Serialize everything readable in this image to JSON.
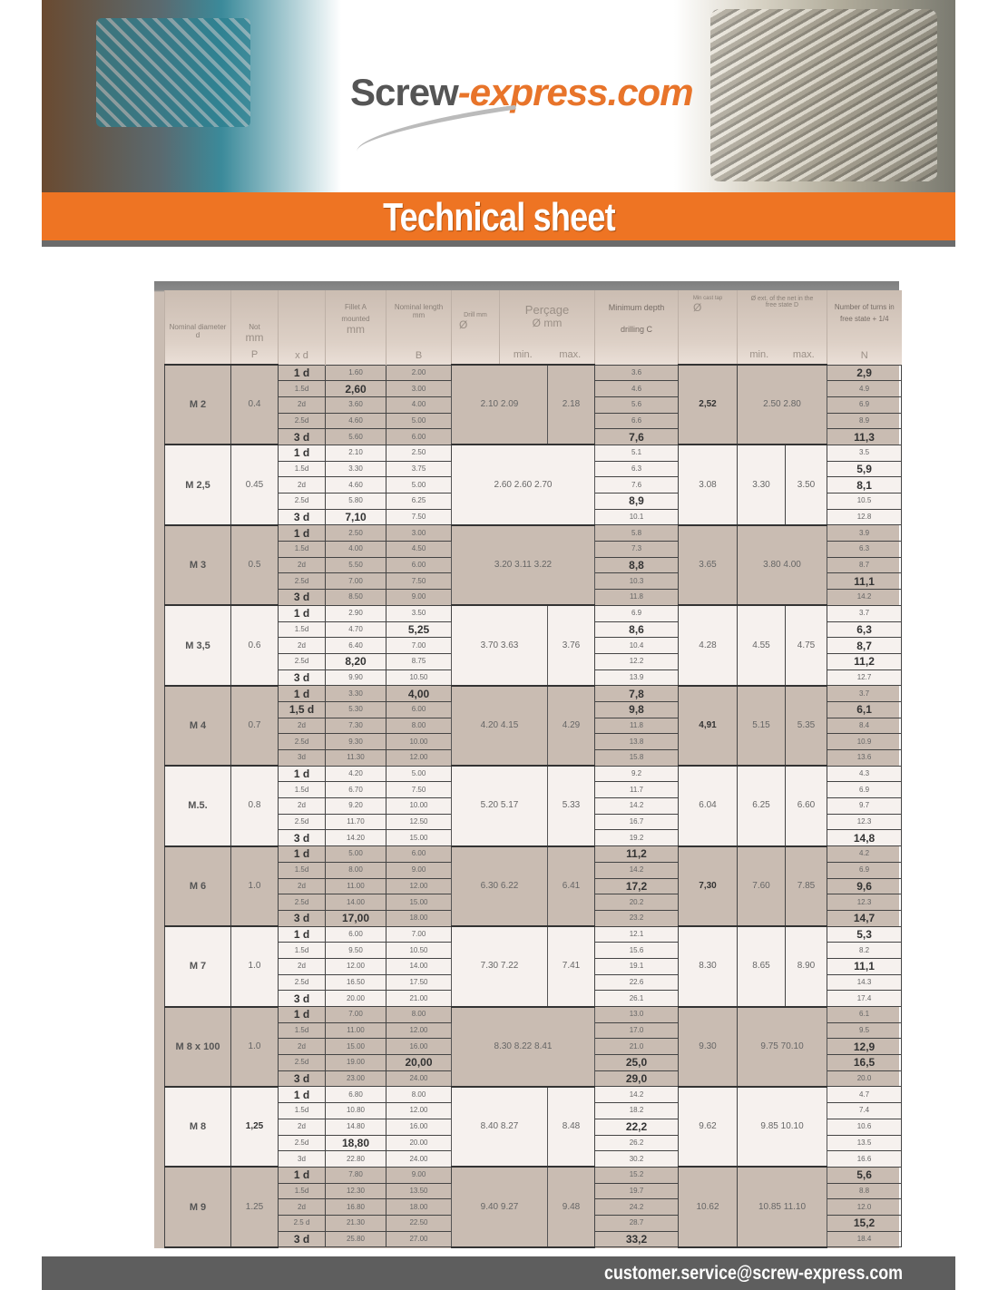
{
  "banner": {
    "logo_part1": "Screw",
    "logo_part2": "-express.com",
    "title": "Technical sheet"
  },
  "colors": {
    "brand_orange": "#ee7423",
    "footer_grey": "#5e5e5e"
  },
  "table": {
    "headers": {
      "nominal_diameter": [
        "Nominal diameter",
        "d"
      ],
      "pitch": [
        "Not",
        "mm",
        "P"
      ],
      "xd": [
        "x d"
      ],
      "fillet": [
        "Fillet A",
        "mounted",
        "mm"
      ],
      "length": [
        "Nominal length",
        "mm",
        "B"
      ],
      "drill": [
        "Drill mm",
        "Ø"
      ],
      "percage": [
        "Perçage",
        "Ø mm",
        "min.",
        "max."
      ],
      "depth": [
        "Minimum depth",
        "drilling C"
      ],
      "tap": [
        "Min cast tap",
        "Ø"
      ],
      "ext_d": [
        "Ø ext. of the net in the free state D",
        "min.",
        "max."
      ],
      "turns": [
        "Number of turns in",
        "free state + 1/4",
        "N"
      ]
    },
    "groups": [
      {
        "name": "M 2",
        "pitch": "0.4",
        "xd": [
          "1 d",
          "1.5d",
          "2d",
          "2.5d",
          "3 d"
        ],
        "fillet": [
          "1.60",
          "2,60",
          "3.60",
          "4.60",
          "5.60"
        ],
        "length": [
          "2.00",
          "3.00",
          "4.00",
          "5.00",
          "6.00"
        ],
        "drill": "2.10 2.09",
        "drill_span": 2,
        "pmax": "2.18",
        "depth": [
          "3.6",
          "4.6",
          "5.6",
          "6.6",
          "7,6"
        ],
        "tap": "2,52",
        "d_combined": "2.50 2.80",
        "turns": [
          "2,9",
          "4.9",
          "6.9",
          "8.9",
          "11,3"
        ]
      },
      {
        "name": "M 2,5",
        "pitch": "0.45",
        "xd": [
          "1 d",
          "1.5d",
          "2d",
          "2.5d",
          "3 d"
        ],
        "fillet": [
          "2.10",
          "3.30",
          "4.60",
          "5.80",
          "7,10"
        ],
        "length": [
          "2.50",
          "3.75",
          "5.00",
          "6.25",
          "7.50"
        ],
        "drill": "2.60 2.60 2.70",
        "drill_span": 3,
        "depth": [
          "5.1",
          "6.3",
          "7.6",
          "8,9",
          "10.1"
        ],
        "tap": "3.08",
        "d_min": "3.30",
        "d_max": "3.50",
        "turns": [
          "3.5",
          "5,9",
          "8,1",
          "10.5",
          "12.8"
        ]
      },
      {
        "name": "M 3",
        "pitch": "0.5",
        "xd": [
          "1 d",
          "1.5d",
          "2d",
          "2.5d",
          "3 d"
        ],
        "fillet": [
          "2.50",
          "4.00",
          "5.50",
          "7.00",
          "8.50"
        ],
        "length": [
          "3.00",
          "4.50",
          "6.00",
          "7.50",
          "9.00"
        ],
        "drill": "3.20 3.11 3.22",
        "drill_span": 3,
        "depth": [
          "5.8",
          "7.3",
          "8,8",
          "10.3",
          "11.8"
        ],
        "tap": "3.65",
        "d_combined": "3.80 4.00",
        "turns": [
          "3.9",
          "6.3",
          "8.7",
          "11,1",
          "14.2"
        ]
      },
      {
        "name": "M 3,5",
        "pitch": "0.6",
        "xd": [
          "1 d",
          "1.5d",
          "2d",
          "2.5d",
          "3 d"
        ],
        "fillet": [
          "2.90",
          "4.70",
          "6.40",
          "8,20",
          "9.90"
        ],
        "length": [
          "3.50",
          "5,25",
          "7.00",
          "8.75",
          "10.50"
        ],
        "drill": "3.70 3.63",
        "drill_span": 2,
        "pmax": "3.76",
        "depth": [
          "6.9",
          "8,6",
          "10.4",
          "12.2",
          "13.9"
        ],
        "tap": "4.28",
        "d_min": "4.55",
        "d_max": "4.75",
        "turns": [
          "3.7",
          "6,3",
          "8,7",
          "11,2",
          "12.7"
        ]
      },
      {
        "name": "M 4",
        "pitch": "0.7",
        "xd": [
          "1 d",
          "1,5 d",
          "2d",
          "2.5d",
          "3d"
        ],
        "fillet": [
          "3.30",
          "5.30",
          "7.30",
          "9.30",
          "11.30"
        ],
        "length": [
          "4,00",
          "6.00",
          "8.00",
          "10.00",
          "12.00"
        ],
        "drill": "4.20 4.15",
        "drill_span": 2,
        "pmax": "4.29",
        "depth": [
          "7,8",
          "9,8",
          "11.8",
          "13.8",
          "15.8"
        ],
        "tap": "4,91",
        "d_min": "5.15",
        "d_max": "5.35",
        "turns": [
          "3.7",
          "6,1",
          "8.4",
          "10.9",
          "13.6"
        ]
      },
      {
        "name": "M.5.",
        "pitch": "0.8",
        "xd": [
          "1 d",
          "1.5d",
          "2d",
          "2.5d",
          "3 d"
        ],
        "fillet": [
          "4.20",
          "6.70",
          "9.20",
          "11.70",
          "14.20"
        ],
        "length": [
          "5.00",
          "7.50",
          "10.00",
          "12.50",
          "15.00"
        ],
        "drill": "5.20 5.17",
        "drill_span": 2,
        "pmax": "5.33",
        "depth": [
          "9.2",
          "11.7",
          "14.2",
          "16.7",
          "19.2"
        ],
        "tap": "6.04",
        "d_min": "6.25",
        "d_max": "6.60",
        "turns": [
          "4.3",
          "6.9",
          "9.7",
          "12.3",
          "14,8"
        ]
      },
      {
        "name": "M 6",
        "pitch": "1.0",
        "xd": [
          "1 d",
          "1.5d",
          "2d",
          "2.5d",
          "3 d"
        ],
        "fillet": [
          "5.00",
          "8.00",
          "11.00",
          "14.00",
          "17,00"
        ],
        "length": [
          "6.00",
          "9.00",
          "12.00",
          "15.00",
          "18.00"
        ],
        "drill": "6.30 6.22",
        "drill_span": 2,
        "pmax": "6.41",
        "depth": [
          "11,2",
          "14.2",
          "17,2",
          "20.2",
          "23.2"
        ],
        "tap": "7,30",
        "d_min": "7.60",
        "d_max": "7.85",
        "turns": [
          "4.2",
          "6.9",
          "9,6",
          "12.3",
          "14,7"
        ]
      },
      {
        "name": "M 7",
        "pitch": "1.0",
        "xd": [
          "1 d",
          "1.5d",
          "2d",
          "2.5d",
          "3 d"
        ],
        "fillet": [
          "6.00",
          "9.50",
          "12.00",
          "16.50",
          "20.00"
        ],
        "length": [
          "7.00",
          "10.50",
          "14.00",
          "17.50",
          "21.00"
        ],
        "drill": "7.30 7.22",
        "drill_span": 2,
        "pmax": "7.41",
        "depth": [
          "12.1",
          "15.6",
          "19.1",
          "22.6",
          "26.1"
        ],
        "tap": "8.30",
        "d_min": "8.65",
        "d_max": "8.90",
        "turns": [
          "5,3",
          "8.2",
          "11,1",
          "14.3",
          "17.4"
        ]
      },
      {
        "name": "M 8 x 100",
        "pitch": "1.0",
        "xd": [
          "1 d",
          "1.5d",
          "2d",
          "2.5d",
          "3 d"
        ],
        "fillet": [
          "7.00",
          "11.00",
          "15.00",
          "19.00",
          "23.00"
        ],
        "length": [
          "8.00",
          "12.00",
          "16.00",
          "20,00",
          "24.00"
        ],
        "drill": "8.30 8.22 8.41",
        "drill_span": 3,
        "depth": [
          "13.0",
          "17.0",
          "21.0",
          "25,0",
          "29,0"
        ],
        "tap": "9.30",
        "d_combined": "9.75 70.10",
        "turns": [
          "6.1",
          "9.5",
          "12,9",
          "16,5",
          "20.0"
        ]
      },
      {
        "name": "M 8",
        "pitch": "1,25",
        "xd": [
          "1 d",
          "1.5d",
          "2d",
          "2.5d",
          "3d"
        ],
        "fillet": [
          "6.80",
          "10.80",
          "14.80",
          "18,80",
          "22.80"
        ],
        "length": [
          "8.00",
          "12.00",
          "16.00",
          "20.00",
          "24.00"
        ],
        "drill": "8.40 8.27",
        "drill_span": 2,
        "pmax": "8.48",
        "depth": [
          "14.2",
          "18.2",
          "22,2",
          "26.2",
          "30.2"
        ],
        "tap": "9.62",
        "d_combined": "9.85 10.10",
        "turns": [
          "4.7",
          "7.4",
          "10.6",
          "13.5",
          "16.6"
        ]
      },
      {
        "name": "M 9",
        "pitch": "1.25",
        "xd": [
          "1 d",
          "1.5d",
          "2d",
          "2.5 d",
          "3 d"
        ],
        "fillet": [
          "7.80",
          "12.30",
          "16.80",
          "21.30",
          "25.80"
        ],
        "length": [
          "9.00",
          "13.50",
          "18.00",
          "22.50",
          "27.00"
        ],
        "drill": "9.40 9.27",
        "drill_span": 2,
        "pmax": "9.48",
        "depth": [
          "15.2",
          "19.7",
          "24.2",
          "28.7",
          "33,2"
        ],
        "tap": "10.62",
        "d_combined": "10.85 11.10",
        "turns": [
          "5,6",
          "8.8",
          "12.0",
          "15,2",
          "18.4"
        ]
      }
    ]
  },
  "footer": {
    "email": "customer.service@screw-express.com"
  }
}
